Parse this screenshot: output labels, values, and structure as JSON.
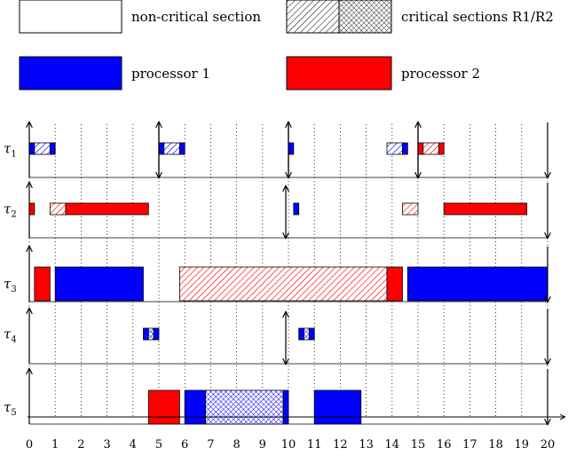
{
  "legend": {
    "non_critical": "non-critical section",
    "critical": "critical sections R1/R2",
    "processor_1": "processor 1",
    "processor_2": "processor 2"
  },
  "colors": {
    "processor_1": "#0000ff",
    "processor_2": "#ff0000",
    "black": "#000000"
  },
  "timeline": {
    "min": 0,
    "max": 20,
    "ticks": [
      "0",
      "1",
      "2",
      "3",
      "4",
      "5",
      "6",
      "7",
      "8",
      "9",
      "10",
      "11",
      "12",
      "13",
      "14",
      "15",
      "16",
      "17",
      "18",
      "19",
      "20"
    ]
  },
  "tasks": [
    {
      "label": "τ",
      "sub": "1",
      "segments": [
        {
          "start": 0.0,
          "end": 0.2,
          "proc": 1,
          "kind": "normal"
        },
        {
          "start": 0.2,
          "end": 0.8,
          "proc": 1,
          "kind": "r1"
        },
        {
          "start": 0.8,
          "end": 1.0,
          "proc": 1,
          "kind": "normal"
        },
        {
          "start": 5.0,
          "end": 5.2,
          "proc": 1,
          "kind": "normal"
        },
        {
          "start": 5.2,
          "end": 5.8,
          "proc": 1,
          "kind": "r1"
        },
        {
          "start": 5.8,
          "end": 6.0,
          "proc": 1,
          "kind": "normal"
        },
        {
          "start": 10.0,
          "end": 10.2,
          "proc": 1,
          "kind": "normal"
        },
        {
          "start": 13.8,
          "end": 14.4,
          "proc": 1,
          "kind": "r1"
        },
        {
          "start": 14.4,
          "end": 14.6,
          "proc": 1,
          "kind": "normal"
        },
        {
          "start": 15.0,
          "end": 15.2,
          "proc": 2,
          "kind": "normal"
        },
        {
          "start": 15.2,
          "end": 15.8,
          "proc": 2,
          "kind": "r1"
        },
        {
          "start": 15.8,
          "end": 16.0,
          "proc": 2,
          "kind": "normal"
        }
      ],
      "releases": [
        0,
        5,
        10,
        15
      ],
      "deadlines": [
        5,
        10,
        15,
        20
      ],
      "combined": []
    },
    {
      "label": "τ",
      "sub": "2",
      "segments": [
        {
          "start": 0.0,
          "end": 0.2,
          "proc": 2,
          "kind": "normal"
        },
        {
          "start": 0.8,
          "end": 1.4,
          "proc": 2,
          "kind": "r1"
        },
        {
          "start": 1.4,
          "end": 4.6,
          "proc": 2,
          "kind": "normal"
        },
        {
          "start": 10.2,
          "end": 10.4,
          "proc": 1,
          "kind": "normal"
        },
        {
          "start": 14.4,
          "end": 15.0,
          "proc": 2,
          "kind": "r1"
        },
        {
          "start": 16.0,
          "end": 19.2,
          "proc": 2,
          "kind": "normal"
        }
      ],
      "releases": [
        0
      ],
      "deadlines": [
        20
      ],
      "combined": [
        10
      ]
    },
    {
      "label": "τ",
      "sub": "3",
      "segments": [
        {
          "start": 0.2,
          "end": 0.8,
          "proc": 2,
          "kind": "normal"
        },
        {
          "start": 1.0,
          "end": 4.4,
          "proc": 1,
          "kind": "normal"
        },
        {
          "start": 5.8,
          "end": 13.8,
          "proc": 2,
          "kind": "r1"
        },
        {
          "start": 13.8,
          "end": 14.4,
          "proc": 2,
          "kind": "normal"
        },
        {
          "start": 14.6,
          "end": 20.0,
          "proc": 1,
          "kind": "normal"
        }
      ],
      "releases": [
        0
      ],
      "deadlines": [
        20
      ],
      "combined": []
    },
    {
      "label": "τ",
      "sub": "4",
      "segments": [
        {
          "start": 4.4,
          "end": 4.6,
          "proc": 1,
          "kind": "normal"
        },
        {
          "start": 4.6,
          "end": 4.8,
          "proc": 1,
          "kind": "r2"
        },
        {
          "start": 4.8,
          "end": 5.0,
          "proc": 1,
          "kind": "normal"
        },
        {
          "start": 10.4,
          "end": 10.6,
          "proc": 1,
          "kind": "normal"
        },
        {
          "start": 10.6,
          "end": 10.8,
          "proc": 1,
          "kind": "r2"
        },
        {
          "start": 10.8,
          "end": 11.0,
          "proc": 1,
          "kind": "normal"
        }
      ],
      "releases": [
        0
      ],
      "deadlines": [
        20
      ],
      "combined": [
        10
      ]
    },
    {
      "label": "τ",
      "sub": "5",
      "segments": [
        {
          "start": 4.6,
          "end": 5.8,
          "proc": 2,
          "kind": "normal"
        },
        {
          "start": 6.0,
          "end": 6.8,
          "proc": 1,
          "kind": "normal"
        },
        {
          "start": 6.8,
          "end": 9.8,
          "proc": 1,
          "kind": "r2"
        },
        {
          "start": 9.8,
          "end": 10.0,
          "proc": 1,
          "kind": "normal"
        },
        {
          "start": 11.0,
          "end": 12.8,
          "proc": 1,
          "kind": "normal"
        }
      ],
      "releases": [
        0
      ],
      "deadlines": [
        20
      ],
      "combined": []
    }
  ]
}
